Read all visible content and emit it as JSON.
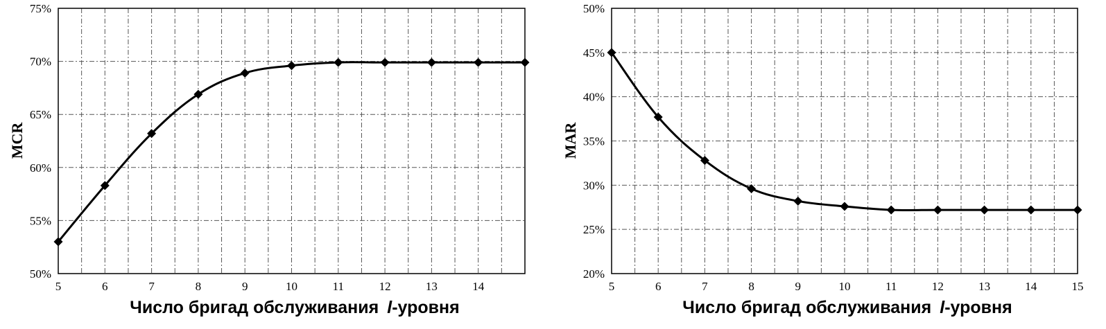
{
  "chart_data": [
    {
      "type": "line",
      "ylabel": "MCR",
      "xlabel_parts": [
        "Число бригад обслуживания",
        "l",
        "-уровня"
      ],
      "x": [
        5,
        6,
        7,
        8,
        9,
        10,
        11,
        12,
        13,
        14,
        15
      ],
      "x_tick_labels": [
        "5",
        "6",
        "7",
        "8",
        "9",
        "10",
        "11",
        "12",
        "13",
        "14"
      ],
      "y_tick_labels": [
        "50%",
        "55%",
        "60%",
        "65%",
        "70%",
        "75%"
      ],
      "xlim": [
        5,
        15
      ],
      "ylim": [
        50,
        75
      ],
      "y_ticks": [
        50,
        55,
        60,
        65,
        70,
        75
      ],
      "grid": true,
      "marker": "diamond",
      "series": [
        {
          "values": [
            53.0,
            58.3,
            63.2,
            66.9,
            68.9,
            69.6,
            69.9,
            69.9,
            69.9,
            69.9,
            69.9
          ]
        }
      ]
    },
    {
      "type": "line",
      "ylabel": "MAR",
      "xlabel_parts": [
        "Число бригад обслуживания",
        "l",
        "-уровня"
      ],
      "x": [
        5,
        6,
        7,
        8,
        9,
        10,
        11,
        12,
        13,
        14,
        15
      ],
      "x_tick_labels": [
        "5",
        "6",
        "7",
        "8",
        "9",
        "10",
        "11",
        "12",
        "13",
        "14",
        "15"
      ],
      "y_tick_labels": [
        "20%",
        "25%",
        "30%",
        "35%",
        "40%",
        "45%",
        "50%"
      ],
      "xlim": [
        5,
        15
      ],
      "ylim": [
        20,
        50
      ],
      "y_ticks": [
        20,
        25,
        30,
        35,
        40,
        45,
        50
      ],
      "grid": true,
      "marker": "diamond",
      "series": [
        {
          "values": [
            45.0,
            37.7,
            32.8,
            29.6,
            28.2,
            27.6,
            27.2,
            27.2,
            27.2,
            27.2,
            27.2
          ]
        }
      ]
    }
  ]
}
